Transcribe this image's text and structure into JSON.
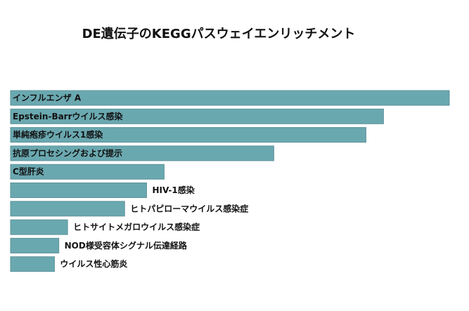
{
  "chart_data": {
    "type": "bar",
    "orientation": "horizontal",
    "title": "DE遺伝子のKEGGパスウェイエンリッチメント",
    "xlabel": "",
    "ylabel": "",
    "grid": false,
    "bar_color": "#6AA8B0",
    "categories": [
      "インフルエンザ A",
      "Epstein-Barrウイルス感染",
      "単純疱疹ウイルス1感染",
      "抗原プロセシングおよび提示",
      "C型肝炎",
      "HIV-1感染",
      "ヒトパピローマウイルス感染症",
      "ヒトサイトメガロウイルス感染症",
      "NOD様受容体シグナル伝達経路",
      "ウイルス性心筋炎"
    ],
    "values": [
      100,
      85,
      81,
      60,
      35,
      31,
      26,
      13,
      11,
      10
    ]
  }
}
